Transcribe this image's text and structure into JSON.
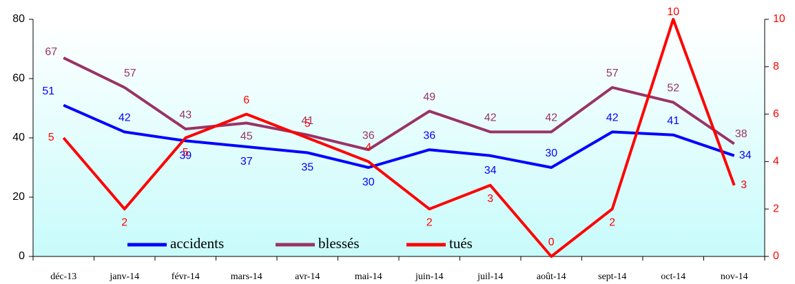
{
  "chart_data": {
    "type": "line",
    "categories": [
      "déc-13",
      "janv-14",
      "févr-14",
      "mars-14",
      "avr-14",
      "mai-14",
      "juin-14",
      "juil-14",
      "août-14",
      "sept-14",
      "oct-14",
      "nov-14"
    ],
    "series": [
      {
        "name": "accidents",
        "color": "#0000ff",
        "values": [
          51,
          42,
          39,
          37,
          35,
          30,
          36,
          34,
          30,
          42,
          41,
          34
        ]
      },
      {
        "name": "blessés",
        "color": "#993366",
        "values": [
          67,
          57,
          43,
          45,
          41,
          36,
          49,
          42,
          42,
          57,
          52,
          38
        ]
      },
      {
        "name": "tués",
        "color": "#ff0000",
        "axis": "y2",
        "values": [
          5,
          2,
          5,
          6,
          5,
          4,
          2,
          3,
          0,
          2,
          10,
          3
        ]
      }
    ],
    "ylim": [
      0,
      80
    ],
    "yticks": [
      0,
      20,
      40,
      60,
      80
    ],
    "y2lim": [
      0,
      10
    ],
    "y2ticks": [
      0,
      2,
      4,
      6,
      8,
      10
    ],
    "legend": "bottom"
  }
}
